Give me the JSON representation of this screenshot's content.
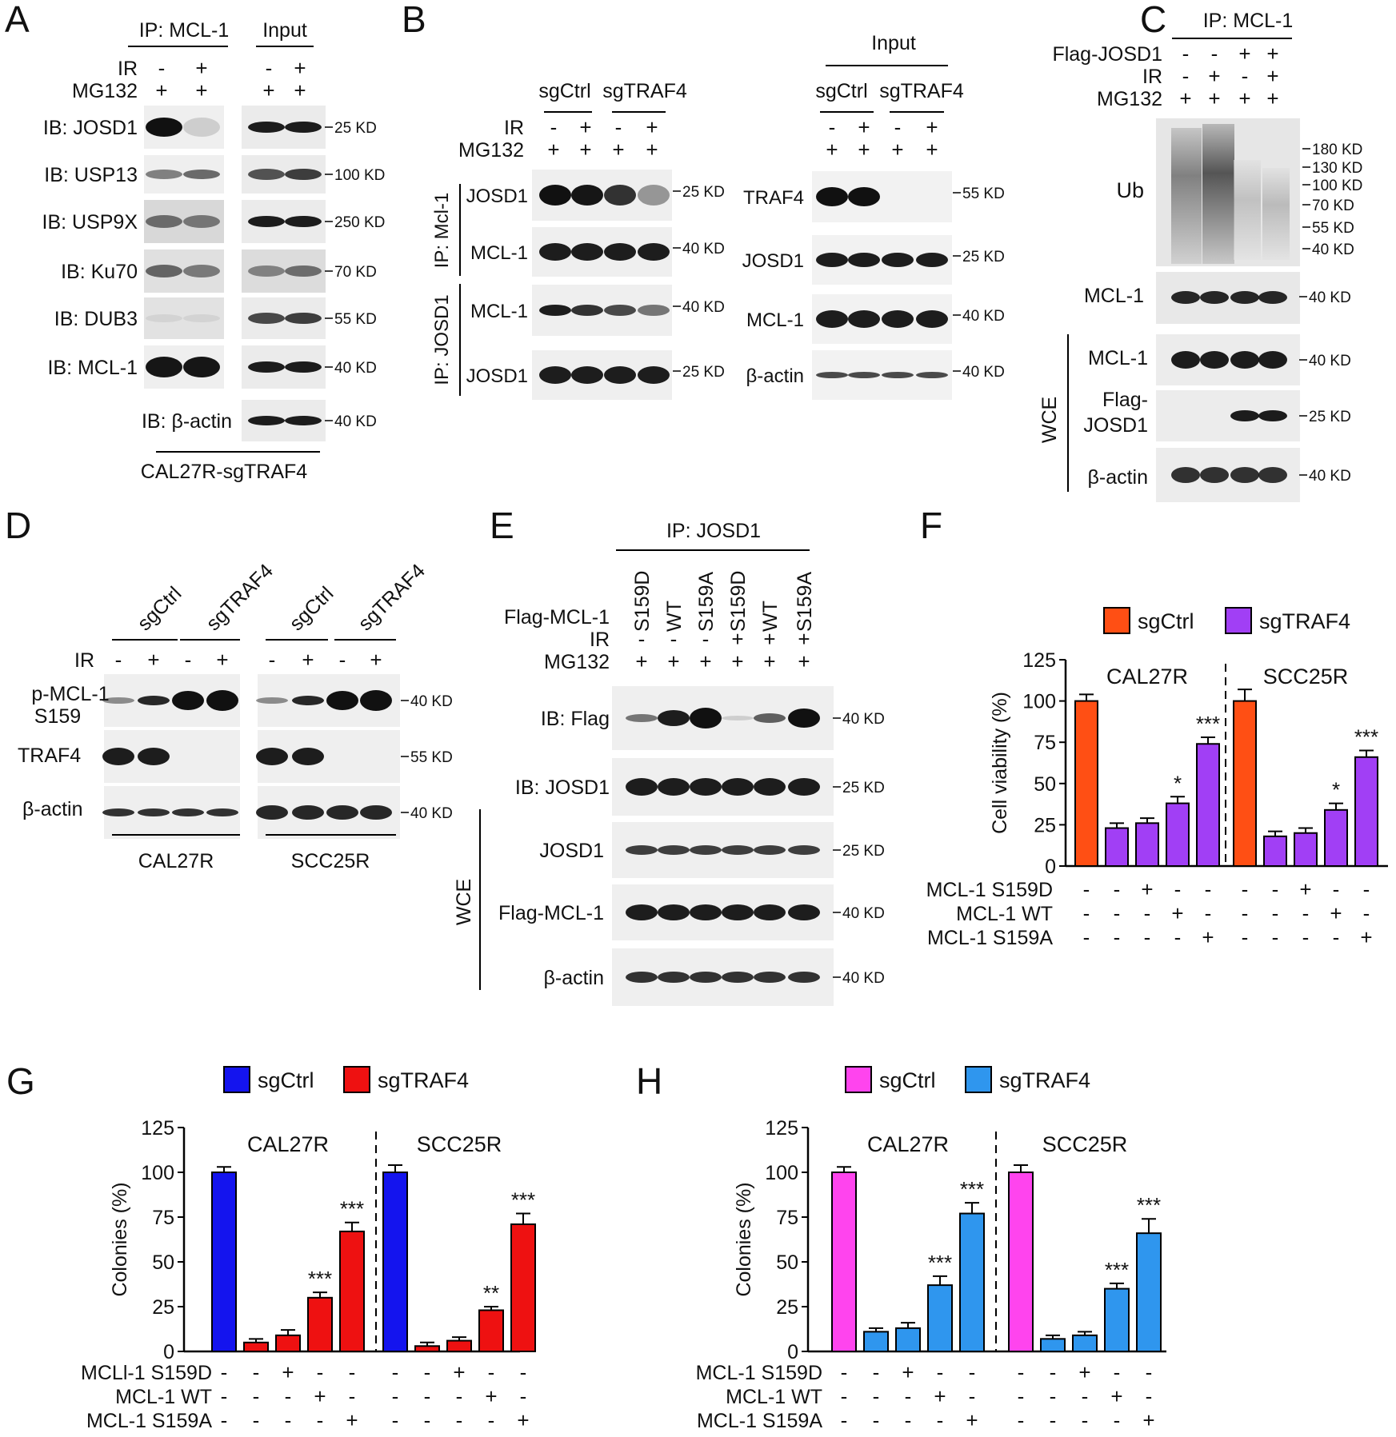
{
  "panels": {
    "A": {
      "letter": "A",
      "ip_label": "IP: MCL-1",
      "input_label": "Input",
      "row_ir": "IR",
      "row_mg": "MG132",
      "ir_vals": [
        "-",
        "+",
        "-",
        "+"
      ],
      "mg_vals": [
        "+",
        "+",
        "+",
        "+"
      ],
      "blots": [
        "IB: JOSD1",
        "IB: USP13",
        "IB: USP9X",
        "IB: Ku70",
        "IB: DUB3",
        "IB: MCL-1",
        "IB: β-actin"
      ],
      "kd": [
        "25 KD",
        "100 KD",
        "250 KD",
        "70 KD",
        "55 KD",
        "40 KD",
        "40 KD"
      ],
      "footer": "CAL27R-sgTRAF4"
    },
    "B": {
      "letter": "B",
      "group1": "sgCtrl",
      "group2": "sgTRAF4",
      "input_label": "Input",
      "row_ir": "IR",
      "row_mg": "MG132",
      "ir_vals": [
        "-",
        "+",
        "-",
        "+"
      ],
      "mg_vals": [
        "+",
        "+",
        "+",
        "+"
      ],
      "ip_mcl": "IP: Mcl-1",
      "ip_josd": "IP: JOSD1",
      "left_blots": [
        "JOSD1",
        "MCL-1",
        "MCL-1",
        "JOSD1"
      ],
      "left_kd": [
        "25 KD",
        "40 KD",
        "40 KD",
        "25 KD"
      ],
      "right_blots": [
        "TRAF4",
        "JOSD1",
        "MCL-1",
        "β-actin"
      ],
      "right_kd": [
        "55 KD",
        "25 KD",
        "40 KD",
        "40 KD"
      ]
    },
    "C": {
      "letter": "C",
      "ip_label": "IP: MCL-1",
      "row_flag": "Flag-JOSD1",
      "row_ir": "IR",
      "row_mg": "MG132",
      "flag_vals": [
        "-",
        "-",
        "+",
        "+"
      ],
      "ir_vals": [
        "-",
        "+",
        "-",
        "+"
      ],
      "mg_vals": [
        "+",
        "+",
        "+",
        "+"
      ],
      "ub_label": "Ub",
      "ub_kd": [
        "180 KD",
        "130 KD",
        "100 KD",
        "70 KD",
        "55 KD",
        "40 KD"
      ],
      "mcl_label": "MCL-1",
      "mcl_kd": "40 KD",
      "wce": "WCE",
      "wce_mcl": "MCL-1",
      "wce_flag_1": "Flag-",
      "wce_flag_2": "JOSD1",
      "wce_actin": "β-actin",
      "wce_kd": [
        "40 KD",
        "25 KD",
        "40 KD"
      ]
    },
    "D": {
      "letter": "D",
      "groups": [
        "sgCtrl",
        "sgTRAF4",
        "sgCtrl",
        "sgTRAF4"
      ],
      "row_ir": "IR",
      "ir_vals": [
        "-",
        "+",
        "-",
        "+",
        "-",
        "+",
        "-",
        "+"
      ],
      "blot_p1": "p-MCL-1",
      "blot_p2": "S159",
      "blot_traf": "TRAF4",
      "blot_actin": "β-actin",
      "kd": [
        "40 KD",
        "55 KD",
        "40 KD"
      ],
      "cells": [
        "CAL27R",
        "SCC25R"
      ]
    },
    "E": {
      "letter": "E",
      "ip_label": "IP: JOSD1",
      "row_flag": "Flag-MCL-1",
      "row_ir": "IR",
      "row_mg": "MG132",
      "lanes": [
        "S159D",
        "WT",
        "S159A",
        "S159D",
        "WT",
        "S159A"
      ],
      "ir_vals": [
        "-",
        "-",
        "-",
        "+",
        "+",
        "+"
      ],
      "mg_vals": [
        "+",
        "+",
        "+",
        "+",
        "+",
        "+"
      ],
      "blots": [
        "IB: Flag",
        "IB: JOSD1",
        "JOSD1",
        "Flag-MCL-1",
        "β-actin"
      ],
      "kd": [
        "40 KD",
        "25 KD",
        "25 KD",
        "40 KD",
        "40 KD"
      ],
      "wce": "WCE"
    }
  },
  "bar_panels": {
    "F": {
      "letter": "F",
      "rows": [
        "MCL-1 S159D",
        "MCL-1 WT",
        "MCL-1 S159A"
      ],
      "signs": [
        [
          "-",
          "-",
          "+",
          "-",
          "-"
        ],
        [
          "-",
          "-",
          "-",
          "+",
          "-"
        ],
        [
          "-",
          "-",
          "-",
          "-",
          "+"
        ]
      ]
    },
    "G": {
      "letter": "G",
      "rows": [
        "MCLl-1 S159D",
        "MCL-1 WT",
        "MCL-1 S159A"
      ],
      "signs": [
        [
          "-",
          "-",
          "+",
          "-",
          "-"
        ],
        [
          "-",
          "-",
          "-",
          "+",
          "-"
        ],
        [
          "-",
          "-",
          "-",
          "-",
          "+"
        ]
      ]
    },
    "H": {
      "letter": "H",
      "rows": [
        "MCL-1 S159D",
        "MCL-1 WT",
        "MCL-1 S159A"
      ],
      "signs": [
        [
          "-",
          "-",
          "+",
          "-",
          "-"
        ],
        [
          "-",
          "-",
          "-",
          "+",
          "-"
        ],
        [
          "-",
          "-",
          "-",
          "-",
          "+"
        ]
      ]
    }
  },
  "chart_data": [
    {
      "type": "bar",
      "panel": "F",
      "ylabel": "Cell viability (%)",
      "ylim": [
        0,
        125
      ],
      "yticks": [
        "0",
        "25",
        "50",
        "75",
        "100",
        "125"
      ],
      "groups": [
        "CAL27R",
        "SCC25R"
      ],
      "legend": [
        "sgCtrl",
        "sgTRAF4"
      ],
      "colors": [
        "#ff4f14",
        "#a13ff5"
      ],
      "series": [
        {
          "name": "CAL27R",
          "values": [
            100,
            23,
            26,
            38,
            74
          ],
          "errors": [
            4,
            3,
            3,
            4,
            4
          ],
          "sig": [
            "",
            "",
            "",
            "*",
            "***"
          ]
        },
        {
          "name": "SCC25R",
          "values": [
            100,
            18,
            20,
            34,
            66
          ],
          "errors": [
            7,
            3,
            3,
            4,
            4
          ],
          "sig": [
            "",
            "",
            "",
            "*",
            "***"
          ]
        }
      ]
    },
    {
      "type": "bar",
      "panel": "G",
      "ylabel": "Colonies (%)",
      "ylim": [
        0,
        125
      ],
      "yticks": [
        "0",
        "25",
        "50",
        "75",
        "100",
        "125"
      ],
      "groups": [
        "CAL27R",
        "SCC25R"
      ],
      "legend": [
        "sgCtrl",
        "sgTRAF4"
      ],
      "colors": [
        "#1414ee",
        "#ee1111"
      ],
      "series": [
        {
          "name": "CAL27R",
          "values": [
            100,
            5,
            9,
            30,
            67
          ],
          "errors": [
            3,
            2,
            3,
            3,
            5
          ],
          "sig": [
            "",
            "",
            "",
            "***",
            "***"
          ]
        },
        {
          "name": "SCC25R",
          "values": [
            100,
            3,
            6,
            23,
            71
          ],
          "errors": [
            4,
            2,
            2,
            2,
            6
          ],
          "sig": [
            "",
            "",
            "",
            "**",
            "***"
          ]
        }
      ]
    },
    {
      "type": "bar",
      "panel": "H",
      "ylabel": "Colonies (%)",
      "ylim": [
        0,
        125
      ],
      "yticks": [
        "0",
        "25",
        "50",
        "75",
        "100",
        "125"
      ],
      "groups": [
        "CAL27R",
        "SCC25R"
      ],
      "legend": [
        "sgCtrl",
        "sgTRAF4"
      ],
      "colors": [
        "#ff44ee",
        "#2f96ee"
      ],
      "series": [
        {
          "name": "CAL27R",
          "values": [
            100,
            11,
            13,
            37,
            77
          ],
          "errors": [
            3,
            2,
            3,
            5,
            6
          ],
          "sig": [
            "",
            "",
            "",
            "***",
            "***"
          ]
        },
        {
          "name": "SCC25R",
          "values": [
            100,
            7,
            9,
            35,
            66
          ],
          "errors": [
            4,
            2,
            2,
            3,
            8
          ],
          "sig": [
            "",
            "",
            "",
            "***",
            "***"
          ]
        }
      ]
    }
  ]
}
